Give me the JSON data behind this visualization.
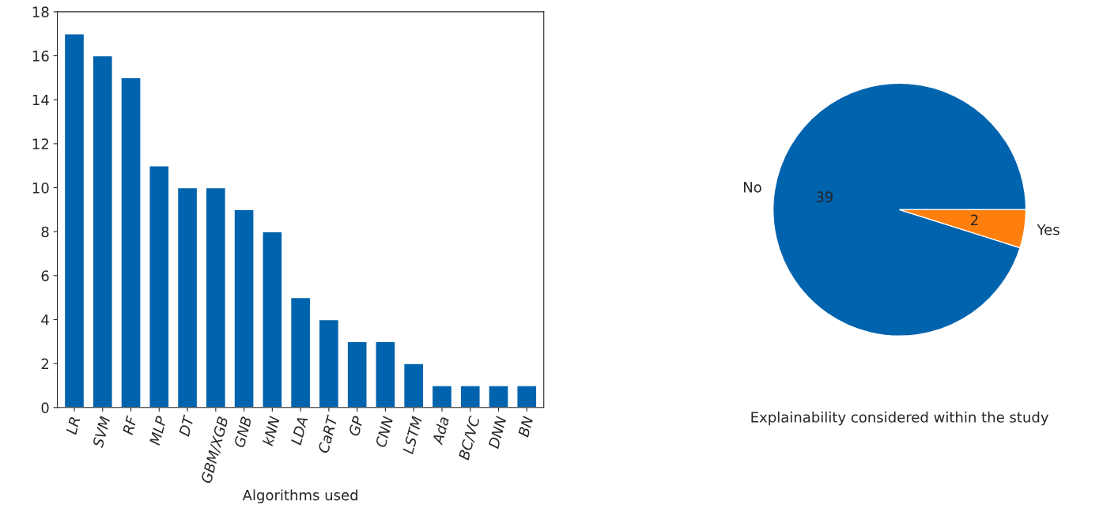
{
  "chart_data": [
    {
      "type": "bar",
      "xlabel": "Algorithms used",
      "categories": [
        "LR",
        "SVM",
        "RF",
        "MLP",
        "DT",
        "GBM/XGB",
        "GNB",
        "kNN",
        "LDA",
        "CaRT",
        "GP",
        "CNN",
        "LSTM",
        "Ada",
        "BC/VC",
        "DNN",
        "BN"
      ],
      "values": [
        17,
        16,
        15,
        11,
        10,
        10,
        9,
        8,
        5,
        4,
        3,
        3,
        2,
        1,
        1,
        1,
        1
      ],
      "color": "#0063ad",
      "ylim": [
        0,
        18
      ],
      "yticks": [
        0,
        2,
        4,
        6,
        8,
        10,
        12,
        14,
        16,
        18
      ],
      "grid": false,
      "legend": false
    },
    {
      "type": "pie",
      "xlabel": "Explainability considered within the study",
      "categories": [
        "No",
        "Yes"
      ],
      "values": [
        39,
        2
      ],
      "colors": [
        "#0063ad",
        "#ff7f0e"
      ],
      "data_labels": true,
      "legend": false
    }
  ]
}
